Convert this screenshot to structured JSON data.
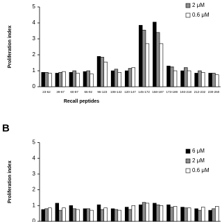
{
  "chart_data": [
    {
      "type": "bar",
      "y_label": "Proliferation index",
      "x_label": "Recall peptides",
      "categories": [
        "23-52",
        "39-67",
        "60-87",
        "65-92",
        "96-123",
        "108-142",
        "120-147",
        "145-172",
        "158-187",
        "173-189",
        "193-218",
        "212-232",
        "230-260"
      ],
      "series": [
        {
          "name": null,
          "color": "#000000",
          "values": [
            0.9,
            0.85,
            0.9,
            0.95,
            1.9,
            1.0,
            1.0,
            3.85,
            4.05,
            1.3,
            1.0,
            0.85,
            0.85
          ]
        },
        {
          "name": "2 μM",
          "color": "#8c8c8c",
          "values": [
            0.9,
            0.9,
            1.0,
            1.0,
            1.85,
            1.1,
            1.15,
            3.55,
            3.4,
            1.25,
            1.2,
            1.0,
            0.85
          ]
        },
        {
          "name": "0.6 μM",
          "color": "#ffffff",
          "values": [
            0.85,
            0.95,
            0.85,
            0.8,
            1.55,
            0.9,
            1.2,
            2.7,
            2.7,
            1.0,
            1.0,
            0.9,
            0.75
          ]
        }
      ],
      "ylim": [
        0,
        5
      ],
      "yticks": [
        0,
        1,
        2,
        3,
        4,
        5
      ]
    },
    {
      "type": "bar",
      "panel_label": "B",
      "y_label": "Proliferation index",
      "categories": [
        null,
        null,
        null,
        null,
        null,
        null,
        null,
        null,
        null,
        null,
        null,
        null,
        null
      ],
      "series": [
        {
          "name": "6 μM",
          "color": "#000000",
          "values": [
            0.75,
            1.15,
            1.0,
            0.8,
            1.05,
            0.8,
            0.9,
            1.05,
            1.15,
            1.05,
            0.9,
            0.8,
            0.7
          ]
        },
        {
          "name": "2 μM",
          "color": "#8c8c8c",
          "values": [
            0.8,
            0.7,
            0.8,
            0.8,
            0.75,
            0.75,
            0.75,
            1.2,
            1.05,
            0.9,
            0.85,
            0.7,
            0.8
          ]
        },
        {
          "name": "0.6 μM",
          "color": "#ffffff",
          "values": [
            0.85,
            0.85,
            0.75,
            0.7,
            0.85,
            0.7,
            1.0,
            1.15,
            1.0,
            0.95,
            0.85,
            0.9,
            0.95
          ]
        }
      ],
      "ylim": [
        0,
        5
      ],
      "yticks": [
        0,
        1,
        2,
        3,
        4,
        5
      ]
    }
  ]
}
